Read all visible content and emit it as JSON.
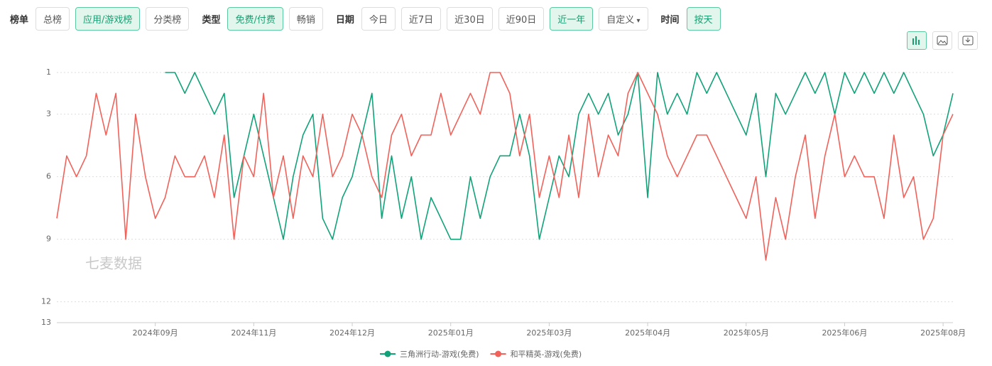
{
  "filters": [
    {
      "label": "榜单",
      "options": [
        "总榜",
        "应用/游戏榜",
        "分类榜"
      ],
      "active": 1
    },
    {
      "label": "类型",
      "options": [
        "免费/付费",
        "畅销"
      ],
      "active": 0
    },
    {
      "label": "日期",
      "options": [
        "今日",
        "近7日",
        "近30日",
        "近90日",
        "近一年",
        "自定义"
      ],
      "active": 4
    },
    {
      "label": "时间",
      "options": [
        "按天"
      ],
      "active": 0
    }
  ],
  "watermark": "七麦数据",
  "chart_data": {
    "type": "line",
    "categories": [
      null,
      null,
      null,
      null,
      null,
      null,
      null,
      null,
      null,
      null,
      "2024年09月",
      null,
      null,
      null,
      null,
      null,
      null,
      null,
      null,
      null,
      "2024年11月",
      null,
      null,
      null,
      null,
      null,
      null,
      null,
      null,
      null,
      "2024年12月",
      null,
      null,
      null,
      null,
      null,
      null,
      null,
      null,
      null,
      "2025年01月",
      null,
      null,
      null,
      null,
      null,
      null,
      null,
      null,
      null,
      "2025年03月",
      null,
      null,
      null,
      null,
      null,
      null,
      null,
      null,
      null,
      "2025年04月",
      null,
      null,
      null,
      null,
      null,
      null,
      null,
      null,
      null,
      "2025年05月",
      null,
      null,
      null,
      null,
      null,
      null,
      null,
      null,
      null,
      "2025年06月",
      null,
      null,
      null,
      null,
      null,
      null,
      null,
      null,
      null,
      "2025年08月",
      null
    ],
    "series": [
      {
        "name": "三角洲行动-游戏(免费)",
        "color": "#12a27a",
        "values": [
          null,
          null,
          null,
          null,
          null,
          null,
          null,
          null,
          null,
          null,
          null,
          1,
          1,
          2,
          1,
          2,
          3,
          2,
          7,
          5,
          3,
          5,
          7,
          9,
          6,
          4,
          3,
          8,
          9,
          7,
          6,
          4,
          2,
          8,
          5,
          8,
          6,
          9,
          7,
          8,
          9,
          9,
          6,
          8,
          6,
          5,
          5,
          3,
          5,
          9,
          7,
          5,
          6,
          3,
          2,
          3,
          2,
          4,
          3,
          1,
          7,
          1,
          3,
          2,
          3,
          1,
          2,
          1,
          2,
          3,
          4,
          2,
          6,
          2,
          3,
          2,
          1,
          2,
          1,
          3,
          1,
          2,
          1,
          2,
          1,
          2,
          1,
          2,
          3,
          5,
          4,
          2
        ]
      },
      {
        "name": "和平精英-游戏(免费)",
        "color": "#f0625a",
        "values": [
          8,
          5,
          6,
          5,
          2,
          4,
          2,
          9,
          3,
          6,
          8,
          7,
          5,
          6,
          6,
          5,
          7,
          4,
          9,
          5,
          6,
          2,
          7,
          5,
          8,
          5,
          6,
          3,
          6,
          5,
          3,
          4,
          6,
          7,
          4,
          3,
          5,
          4,
          4,
          2,
          4,
          3,
          2,
          3,
          1,
          1,
          2,
          5,
          3,
          7,
          5,
          7,
          4,
          7,
          3,
          6,
          4,
          5,
          2,
          1,
          2,
          3,
          5,
          6,
          5,
          4,
          4,
          5,
          6,
          7,
          8,
          6,
          10,
          7,
          9,
          6,
          4,
          8,
          5,
          3,
          6,
          5,
          6,
          6,
          8,
          4,
          7,
          6,
          9,
          8,
          4,
          3
        ]
      }
    ],
    "ylim": [
      1,
      13
    ],
    "yticks": [
      1,
      3,
      6,
      9,
      12,
      13
    ],
    "y_inverted": true,
    "grid": true
  }
}
